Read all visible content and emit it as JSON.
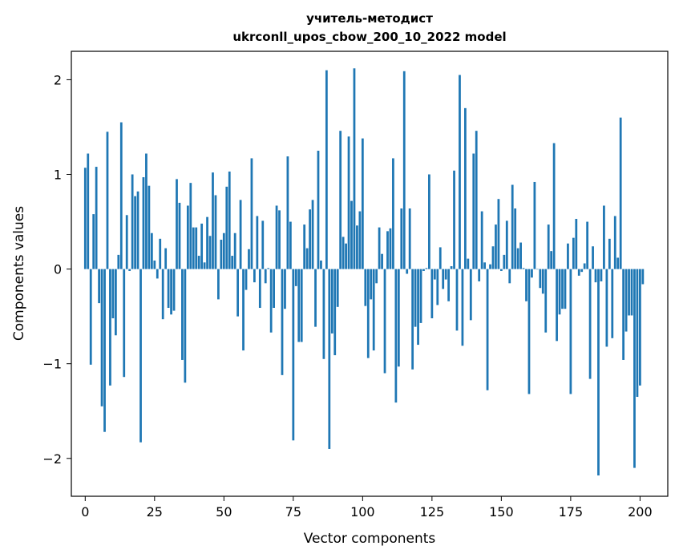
{
  "chart_data": {
    "type": "bar",
    "title": "учитель-методист",
    "subtitle": "ukrconll_upos_cbow_200_10_2022 model",
    "xlabel": "Vector components",
    "ylabel": "Components values",
    "xlim": [
      -5,
      210
    ],
    "ylim": [
      -2.4,
      2.3
    ],
    "x_ticks": [
      0,
      25,
      50,
      75,
      100,
      125,
      150,
      175,
      200
    ],
    "y_ticks": [
      -2,
      -1,
      0,
      1,
      2
    ],
    "y_tick_labels": [
      "−2",
      "−1",
      "0",
      "1",
      "2"
    ],
    "bar_color": "#1f77b4",
    "grid": false,
    "values": [
      1.07,
      1.22,
      -1.01,
      0.58,
      1.08,
      -0.36,
      -1.45,
      -1.72,
      1.45,
      -1.23,
      -0.52,
      -0.7,
      0.15,
      1.55,
      -1.14,
      0.57,
      -0.02,
      1.0,
      0.77,
      0.82,
      -1.83,
      0.97,
      1.22,
      0.88,
      0.38,
      0.09,
      -0.1,
      0.32,
      -0.53,
      0.22,
      -0.41,
      -0.48,
      -0.44,
      0.95,
      0.7,
      -0.96,
      -1.2,
      0.67,
      0.91,
      0.44,
      0.44,
      0.14,
      0.48,
      0.07,
      0.55,
      0.35,
      1.02,
      0.78,
      -0.32,
      0.31,
      0.38,
      0.87,
      1.03,
      0.14,
      0.38,
      -0.5,
      0.73,
      -0.86,
      -0.22,
      0.21,
      1.17,
      -0.14,
      0.56,
      -0.41,
      0.51,
      -0.15,
      0.01,
      -0.67,
      -0.41,
      0.67,
      0.62,
      -1.12,
      -0.42,
      1.19,
      0.5,
      -1.81,
      -0.18,
      -0.77,
      -0.77,
      0.47,
      0.22,
      0.63,
      0.73,
      -0.61,
      1.25,
      0.09,
      -0.95,
      2.1,
      -1.9,
      -0.68,
      -0.91,
      -0.4,
      1.46,
      0.34,
      0.27,
      1.4,
      0.72,
      2.12,
      0.46,
      0.61,
      1.38,
      -0.39,
      -0.94,
      -0.32,
      -0.86,
      -0.15,
      0.44,
      0.16,
      -1.1,
      0.4,
      0.43,
      1.17,
      -1.41,
      -1.03,
      0.64,
      2.09,
      -0.05,
      0.64,
      -1.06,
      -0.61,
      -0.8,
      -0.57,
      -0.02,
      0.01,
      1.0,
      -0.52,
      -0.11,
      -0.38,
      0.23,
      -0.21,
      -0.11,
      -0.34,
      0.03,
      1.04,
      -0.65,
      2.05,
      -0.81,
      1.7,
      0.11,
      -0.54,
      1.22,
      1.46,
      -0.13,
      0.61,
      0.07,
      -1.28,
      0.05,
      0.24,
      0.47,
      0.74,
      -0.02,
      0.15,
      0.51,
      -0.15,
      0.89,
      0.64,
      0.22,
      0.28,
      0.01,
      -0.34,
      -1.32,
      -0.09,
      0.92,
      0.0,
      -0.2,
      -0.26,
      -0.67,
      0.47,
      0.19,
      1.33,
      -0.76,
      -0.48,
      -0.42,
      -0.42,
      0.27,
      -1.32,
      0.33,
      0.53,
      -0.07,
      -0.03,
      0.06,
      0.5,
      -1.16,
      0.24,
      -0.14,
      -2.18,
      -0.13,
      0.67,
      -0.82,
      0.32,
      -0.73,
      0.56,
      0.12,
      1.6,
      -0.96,
      -0.66,
      -0.49,
      -0.49,
      -2.1,
      -1.35,
      -1.23,
      -0.16
    ]
  }
}
